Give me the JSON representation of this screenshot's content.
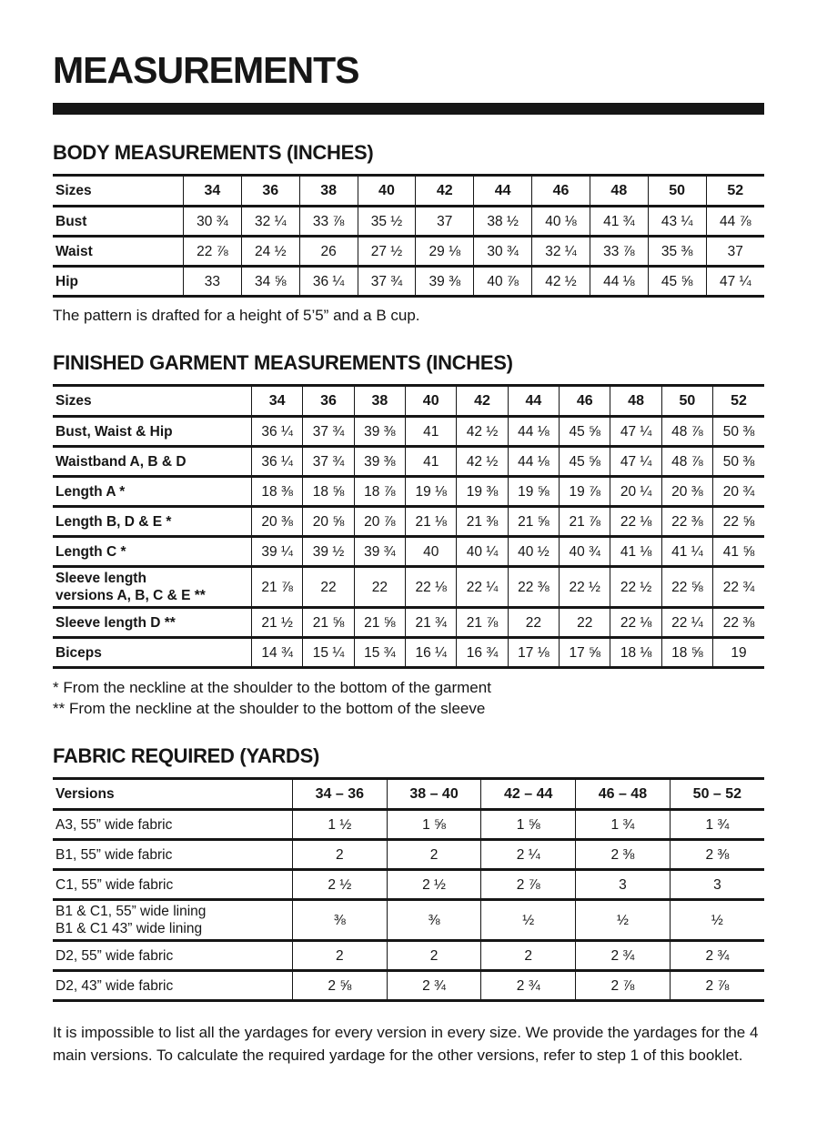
{
  "page": {
    "title": "MEASUREMENTS"
  },
  "sections": {
    "body": {
      "heading": "BODY MEASUREMENTS (INCHES)",
      "note": "The pattern is drafted for a height of 5’5” and a B cup.",
      "table": {
        "header": [
          "Sizes",
          "34",
          "36",
          "38",
          "40",
          "42",
          "44",
          "46",
          "48",
          "50",
          "52"
        ],
        "rows": [
          {
            "label": "Bust",
            "values": [
              "30 ¾",
              "32 ¼",
              "33 ⅞",
              "35 ½",
              "37",
              "38 ½",
              "40 ⅛",
              "41 ¾",
              "43 ¼",
              "44 ⅞"
            ]
          },
          {
            "label": "Waist",
            "values": [
              "22 ⅞",
              "24 ½",
              "26",
              "27 ½",
              "29 ⅛",
              "30 ¾",
              "32 ¼",
              "33 ⅞",
              "35 ⅜",
              "37"
            ]
          },
          {
            "label": "Hip",
            "values": [
              "33",
              "34 ⅝",
              "36 ¼",
              "37 ¾",
              "39 ⅜",
              "40 ⅞",
              "42 ½",
              "44 ⅛",
              "45 ⅝",
              "47 ¼"
            ]
          }
        ]
      }
    },
    "finished": {
      "heading": "FINISHED GARMENT MEASUREMENTS (INCHES)",
      "notes": [
        "* From the neckline at the shoulder to the bottom of the garment",
        "** From the neckline at the shoulder to the bottom of the sleeve"
      ],
      "table": {
        "header": [
          "Sizes",
          "34",
          "36",
          "38",
          "40",
          "42",
          "44",
          "46",
          "48",
          "50",
          "52"
        ],
        "rows": [
          {
            "label": "Bust, Waist & Hip",
            "values": [
              "36 ¼",
              "37 ¾",
              "39 ⅜",
              "41",
              "42 ½",
              "44 ⅛",
              "45 ⅝",
              "47 ¼",
              "48 ⅞",
              "50 ⅜"
            ]
          },
          {
            "label": "Waistband A, B & D",
            "values": [
              "36 ¼",
              "37 ¾",
              "39 ⅜",
              "41",
              "42 ½",
              "44 ⅛",
              "45 ⅝",
              "47 ¼",
              "48 ⅞",
              "50 ⅜"
            ]
          },
          {
            "label": "Length A *",
            "values": [
              "18 ⅜",
              "18 ⅝",
              "18 ⅞",
              "19 ⅛",
              "19 ⅜",
              "19 ⅝",
              "19 ⅞",
              "20 ¼",
              "20 ⅜",
              "20 ¾"
            ]
          },
          {
            "label": "Length B, D & E *",
            "values": [
              "20 ⅜",
              "20 ⅝",
              "20 ⅞",
              "21 ⅛",
              "21 ⅜",
              "21 ⅝",
              "21 ⅞",
              "22 ⅛",
              "22 ⅜",
              "22 ⅝"
            ]
          },
          {
            "label": "Length C *",
            "values": [
              "39 ¼",
              "39 ½",
              "39 ¾",
              "40",
              "40 ¼",
              "40 ½",
              "40 ¾",
              "41 ⅛",
              "41 ¼",
              "41 ⅝"
            ]
          },
          {
            "label": "Sleeve length\nversions A, B, C & E **",
            "values": [
              "21 ⅞",
              "22",
              "22",
              "22 ⅛",
              "22 ¼",
              "22 ⅜",
              "22 ½",
              "22 ½",
              "22 ⅝",
              "22 ¾"
            ]
          },
          {
            "label": "Sleeve length D **",
            "values": [
              "21 ½",
              "21 ⅝",
              "21 ⅝",
              "21 ¾",
              "21 ⅞",
              "22",
              "22",
              "22 ⅛",
              "22 ¼",
              "22 ⅜"
            ]
          },
          {
            "label": "Biceps",
            "values": [
              "14 ¾",
              "15 ¼",
              "15 ¾",
              "16 ¼",
              "16 ¾",
              "17 ⅛",
              "17 ⅝",
              "18 ⅛",
              "18 ⅝",
              "19"
            ]
          }
        ]
      }
    },
    "fabric": {
      "heading": "FABRIC REQUIRED (YARDS)",
      "note": "It is impossible to list all the yardages for every version in every size. We provide the yardages for the 4 main versions. To calculate the required yardage for the other versions, refer to step 1 of this booklet.",
      "table": {
        "header": [
          "Versions",
          "34 – 36",
          "38 – 40",
          "42 – 44",
          "46 – 48",
          "50 – 52"
        ],
        "rows": [
          {
            "label": "A3, 55” wide fabric",
            "values": [
              "1 ½",
              "1 ⅝",
              "1 ⅝",
              "1 ¾",
              "1 ¾"
            ]
          },
          {
            "label": "B1, 55” wide fabric",
            "values": [
              "2",
              "2",
              "2 ¼",
              "2 ⅜",
              "2 ⅜"
            ]
          },
          {
            "label": "C1, 55” wide fabric",
            "values": [
              "2 ½",
              "2 ½",
              "2 ⅞",
              "3",
              "3"
            ]
          },
          {
            "label": "B1 & C1, 55” wide lining\nB1 & C1 43” wide lining",
            "values": [
              "⅜",
              "⅜",
              "½",
              "½",
              "½"
            ]
          },
          {
            "label": "D2, 55” wide fabric",
            "values": [
              "2",
              "2",
              "2",
              "2 ¾",
              "2 ¾"
            ]
          },
          {
            "label": "D2, 43” wide fabric",
            "values": [
              "2 ⅝",
              "2 ¾",
              "2 ¾",
              "2 ⅞",
              "2 ⅞"
            ]
          }
        ]
      }
    }
  }
}
